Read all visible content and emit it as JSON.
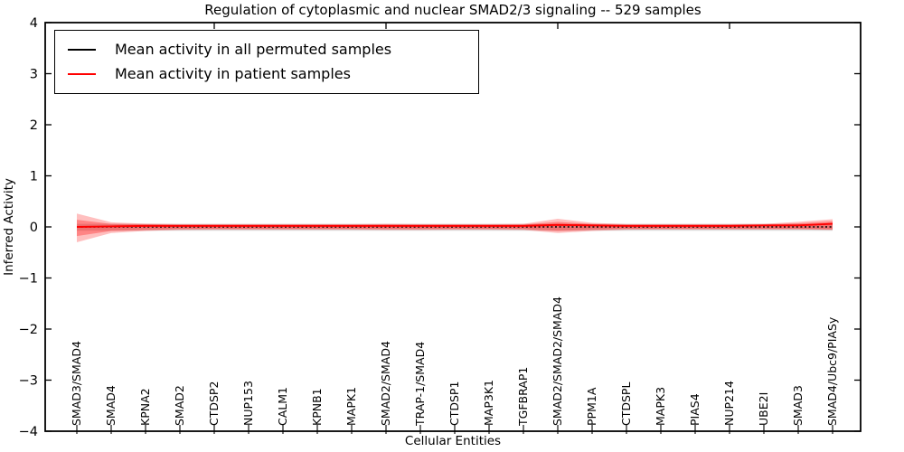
{
  "chart_data": {
    "type": "line",
    "title": "Regulation of cytoplasmic and nuclear SMAD2/3 signaling -- 529 samples",
    "xlabel": "Cellular Entities",
    "ylabel": "Inferred Activity",
    "ylim": [
      -4,
      4
    ],
    "grid": false,
    "yticks": [
      {
        "v": 4,
        "label": "4"
      },
      {
        "v": 3,
        "label": "3"
      },
      {
        "v": 2,
        "label": "2"
      },
      {
        "v": 1,
        "label": "1"
      },
      {
        "v": 0,
        "label": "0"
      },
      {
        "v": -1,
        "label": "−1"
      },
      {
        "v": -2,
        "label": "−2"
      },
      {
        "v": -3,
        "label": "−3"
      },
      {
        "v": -4,
        "label": "−4"
      }
    ],
    "top_ticks_index": [
      4,
      9,
      14,
      19
    ],
    "categories": [
      "SMAD3/SMAD4",
      "SMAD4",
      "KPNA2",
      "SMAD2",
      "CTDSP2",
      "NUP153",
      "CALM1",
      "KPNB1",
      "MAPK1",
      "SMAD2/SMAD4",
      "TRAP-1/SMAD4",
      "CTDSP1",
      "MAP3K1",
      "TGFBRAP1",
      "SMAD2/SMAD2/SMAD4",
      "PPM1A",
      "CTDSPL",
      "MAPK3",
      "PIAS4",
      "NUP214",
      "UBE2I",
      "SMAD3",
      "SMAD4/Ubc9/PIASy"
    ],
    "legend": {
      "position": "upper left",
      "entries": [
        {
          "label": "Mean activity in all permuted samples",
          "color": "#000000"
        },
        {
          "label": "Mean activity in patient samples",
          "color": "#ff0000"
        }
      ]
    },
    "series": [
      {
        "name": "Mean activity in all permuted samples",
        "color": "#000000",
        "style": "dotted",
        "values": [
          0,
          0,
          0,
          0,
          0,
          0,
          0,
          0,
          0,
          0,
          0,
          0,
          0,
          0,
          0,
          0,
          0,
          0,
          0,
          0,
          0,
          0,
          0
        ]
      },
      {
        "name": "Mean activity in patient samples",
        "color": "#ff0000",
        "style": "solid",
        "values": [
          0.0,
          0.01,
          0.02,
          0.02,
          0.02,
          0.02,
          0.02,
          0.02,
          0.02,
          0.02,
          0.02,
          0.02,
          0.02,
          0.02,
          0.04,
          0.03,
          0.02,
          0.02,
          0.02,
          0.02,
          0.03,
          0.03,
          0.06
        ]
      }
    ],
    "bands": [
      {
        "name": "permuted-std",
        "color": "#888888",
        "opacity": 0.3,
        "upper": [
          0.06,
          0.06,
          0.06,
          0.06,
          0.06,
          0.06,
          0.06,
          0.06,
          0.06,
          0.06,
          0.06,
          0.06,
          0.06,
          0.06,
          0.06,
          0.06,
          0.06,
          0.06,
          0.06,
          0.06,
          0.06,
          0.06,
          0.06
        ],
        "lower": [
          -0.075,
          -0.075,
          -0.075,
          -0.075,
          -0.075,
          -0.075,
          -0.075,
          -0.075,
          -0.075,
          -0.075,
          -0.075,
          -0.075,
          -0.075,
          -0.075,
          -0.075,
          -0.075,
          -0.075,
          -0.075,
          -0.075,
          -0.075,
          -0.075,
          -0.075,
          -0.075
        ]
      },
      {
        "name": "patient-outer",
        "color": "#ff0000",
        "opacity": 0.25,
        "upper": [
          0.26,
          0.09,
          0.065,
          0.055,
          0.055,
          0.055,
          0.055,
          0.055,
          0.055,
          0.06,
          0.055,
          0.055,
          0.055,
          0.06,
          0.16,
          0.08,
          0.055,
          0.055,
          0.055,
          0.055,
          0.06,
          0.1,
          0.15
        ],
        "lower": [
          -0.3,
          -0.12,
          -0.08,
          -0.06,
          -0.055,
          -0.055,
          -0.055,
          -0.055,
          -0.055,
          -0.06,
          -0.06,
          -0.055,
          -0.055,
          -0.06,
          -0.12,
          -0.08,
          -0.055,
          -0.05,
          -0.05,
          -0.05,
          -0.05,
          -0.05,
          -0.06
        ]
      },
      {
        "name": "patient-inner",
        "color": "#ff0000",
        "opacity": 0.3,
        "upper": [
          0.14,
          0.06,
          0.05,
          0.04,
          0.04,
          0.04,
          0.04,
          0.04,
          0.04,
          0.045,
          0.04,
          0.04,
          0.04,
          0.045,
          0.1,
          0.055,
          0.04,
          0.04,
          0.04,
          0.04,
          0.045,
          0.07,
          0.11
        ],
        "lower": [
          -0.18,
          -0.08,
          -0.06,
          -0.045,
          -0.04,
          -0.04,
          -0.04,
          -0.04,
          -0.04,
          -0.045,
          -0.045,
          -0.04,
          -0.04,
          -0.045,
          -0.08,
          -0.055,
          -0.04,
          -0.04,
          -0.04,
          -0.04,
          -0.04,
          -0.04,
          -0.05
        ]
      }
    ]
  }
}
